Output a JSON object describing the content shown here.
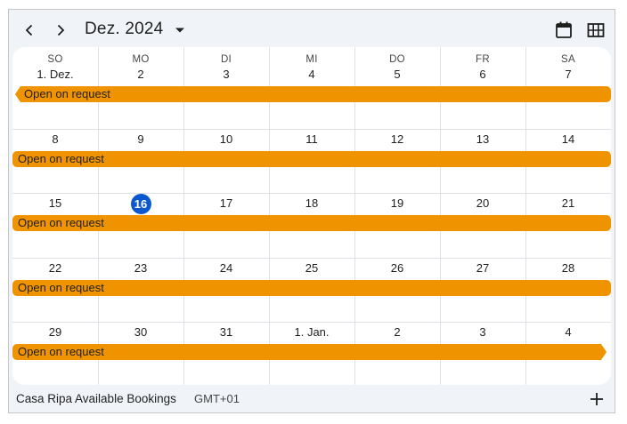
{
  "header": {
    "month_title": "Dez. 2024",
    "prev_icon": "chevron-left-icon",
    "next_icon": "chevron-right-icon",
    "dropdown_icon": "arrow-drop-down-icon",
    "view_icons": [
      "calendar-month-view-icon",
      "grid-view-icon"
    ]
  },
  "weekdays": [
    "SO",
    "MO",
    "DI",
    "MI",
    "DO",
    "FR",
    "SA"
  ],
  "weeks": [
    {
      "days": [
        "1. Dez.",
        "2",
        "3",
        "4",
        "5",
        "6",
        "7"
      ],
      "event": "Open on request"
    },
    {
      "days": [
        "8",
        "9",
        "10",
        "11",
        "12",
        "13",
        "14"
      ],
      "event": "Open on request"
    },
    {
      "days": [
        "15",
        "16",
        "17",
        "18",
        "19",
        "20",
        "21"
      ],
      "event": "Open on request"
    },
    {
      "days": [
        "22",
        "23",
        "24",
        "25",
        "26",
        "27",
        "28"
      ],
      "event": "Open on request"
    },
    {
      "days": [
        "29",
        "30",
        "31",
        "1. Jan.",
        "2",
        "3",
        "4"
      ],
      "event": "Open on request"
    }
  ],
  "today": "16",
  "colors": {
    "event": "#f09300",
    "today": "#0b57d0"
  },
  "footer": {
    "calendar_name": "Casa Ripa Available Bookings",
    "timezone": "GMT+01",
    "add_icon": "plus-icon"
  }
}
